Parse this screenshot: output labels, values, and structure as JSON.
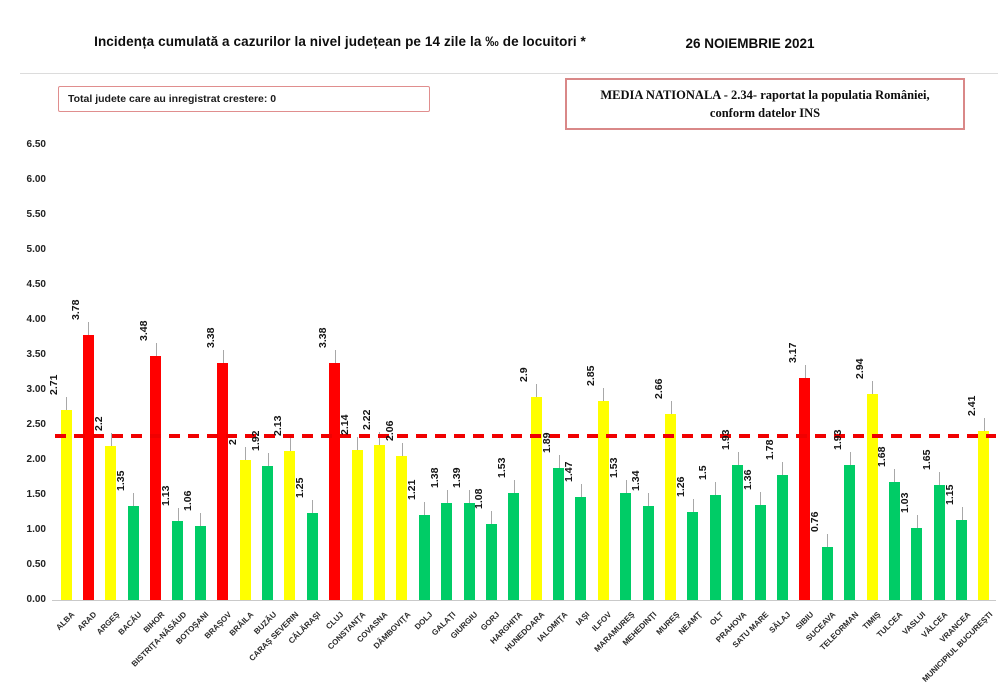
{
  "page": {
    "title": "Incidența cumulată a cazurilor la nivel județean pe 14 zile la ‰ de locuitori *",
    "date": "26 NOIEMBRIE 2021",
    "growth_box_text": "Total judete care au inregistrat crestere: 0",
    "national_avg_line1": "MEDIA NATIONALA - 2.34-  raportat la populatia  României,",
    "national_avg_line2": "conform datelor INS"
  },
  "chart_data": {
    "type": "bar",
    "title": "Incidența cumulată a cazurilor la nivel județean pe 14 zile la ‰ de locuitori *",
    "xlabel": "",
    "ylabel": "",
    "ylim": [
      0,
      6.5
    ],
    "grid": false,
    "legend": false,
    "yticks": [
      "6.50",
      "6.00",
      "5.50",
      "5.00",
      "4.50",
      "4.00",
      "3.50",
      "3.00",
      "2.50",
      "2.00",
      "1.50",
      "1.00",
      "0.50",
      "0.00"
    ],
    "categories": [
      "ALBA",
      "ARAD",
      "ARGEŞ",
      "BACĂU",
      "BIHOR",
      "BISTRIŢA-NĂSĂUD",
      "BOTOŞANI",
      "BRAŞOV",
      "BRĂILA",
      "BUZĂU",
      "CARAŞ SEVERIN",
      "CĂLĂRAŞI",
      "CLUJ",
      "CONSTANŢA",
      "COVASNA",
      "DÂMBOVIŢA",
      "DOLJ",
      "GALAŢI",
      "GIURGIU",
      "GORJ",
      "HARGHITA",
      "HUNEDOARA",
      "IALOMIŢA",
      "IAŞI",
      "ILFOV",
      "MARAMUREŞ",
      "MEHEDINŢI",
      "MUREŞ",
      "NEAMŢ",
      "OLT",
      "PRAHOVA",
      "SATU MARE",
      "SĂLAJ",
      "SIBIU",
      "SUCEAVA",
      "TELEORMAN",
      "TIMIŞ",
      "TULCEA",
      "VASLUI",
      "VÂLCEA",
      "VRANCEA",
      "MUNICIPIUL BUCUREŞTI"
    ],
    "values": [
      2.71,
      3.78,
      2.2,
      1.35,
      3.48,
      1.13,
      1.06,
      3.38,
      2,
      1.92,
      2.13,
      1.25,
      3.38,
      2.14,
      2.22,
      2.06,
      1.21,
      1.38,
      1.39,
      1.08,
      1.53,
      2.9,
      1.89,
      1.47,
      2.85,
      1.53,
      1.34,
      2.66,
      1.26,
      1.5,
      1.93,
      1.36,
      1.78,
      3.17,
      0.76,
      1.93,
      2.94,
      1.68,
      1.03,
      1.65,
      1.15,
      2.41
    ],
    "value_labels": [
      "2.71",
      "3.78",
      "2.2",
      "1.35",
      "3.48",
      "1.13",
      "1.06",
      "3.38",
      "2",
      "1.92",
      "2.13",
      "1.25",
      "3.38",
      "2.14",
      "2.22",
      "2.06",
      "1.21",
      "1.38",
      "1.39",
      "1.08",
      "1.53",
      "2.9",
      "1.89",
      "1.47",
      "2.85",
      "1.53",
      "1.34",
      "2.66",
      "1.26",
      "1.5",
      "1.93",
      "1.36",
      "1.78",
      "3.17",
      "0.76",
      "1.93",
      "2.94",
      "1.68",
      "1.03",
      "1.65",
      "1.15",
      "2.41"
    ],
    "bar_colors": [
      "yellow",
      "red",
      "yellow",
      "green",
      "red",
      "green",
      "green",
      "red",
      "yellow",
      "green",
      "yellow",
      "green",
      "red",
      "yellow",
      "yellow",
      "yellow",
      "green",
      "green",
      "green",
      "green",
      "green",
      "yellow",
      "green",
      "green",
      "yellow",
      "green",
      "green",
      "yellow",
      "green",
      "green",
      "green",
      "green",
      "green",
      "red",
      "green",
      "green",
      "yellow",
      "green",
      "green",
      "green",
      "green",
      "yellow"
    ],
    "palette": {
      "red": "#FF0000",
      "yellow": "#FFFF00",
      "green": "#00CC66"
    },
    "reference_line": {
      "value": 2.34,
      "color": "#F00000",
      "style": "dashed"
    }
  }
}
